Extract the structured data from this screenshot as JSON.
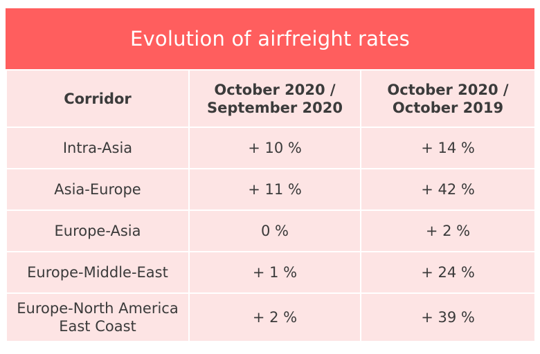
{
  "title": "Evolution of airfreight rates",
  "table": {
    "headers": [
      "Corridor",
      "October 2020 / September 2020",
      "October 2020 / October 2019"
    ],
    "header_lines": {
      "col2": [
        "October 2020 /",
        "September 2020"
      ],
      "col3": [
        "October 2020 /",
        "October 2019"
      ]
    },
    "rows": [
      {
        "corridor": "Intra-Asia",
        "mom": "+ 10 %",
        "yoy": "+ 14 %"
      },
      {
        "corridor": "Asia-Europe",
        "mom": "+ 11 %",
        "yoy": "+ 42 %"
      },
      {
        "corridor": "Europe-Asia",
        "mom": "0 %",
        "yoy": "+ 2 %"
      },
      {
        "corridor": "Europe-Middle-East",
        "mom": "+ 1 %",
        "yoy": "+ 24 %"
      },
      {
        "corridor_lines": [
          "Europe-North America",
          "East Coast"
        ],
        "mom": "+ 2 %",
        "yoy": "+ 39 %"
      }
    ]
  },
  "colors": {
    "title_background": "#ff5e5e",
    "cell_background": "#fde4e4",
    "text": "#3a3a3a"
  }
}
